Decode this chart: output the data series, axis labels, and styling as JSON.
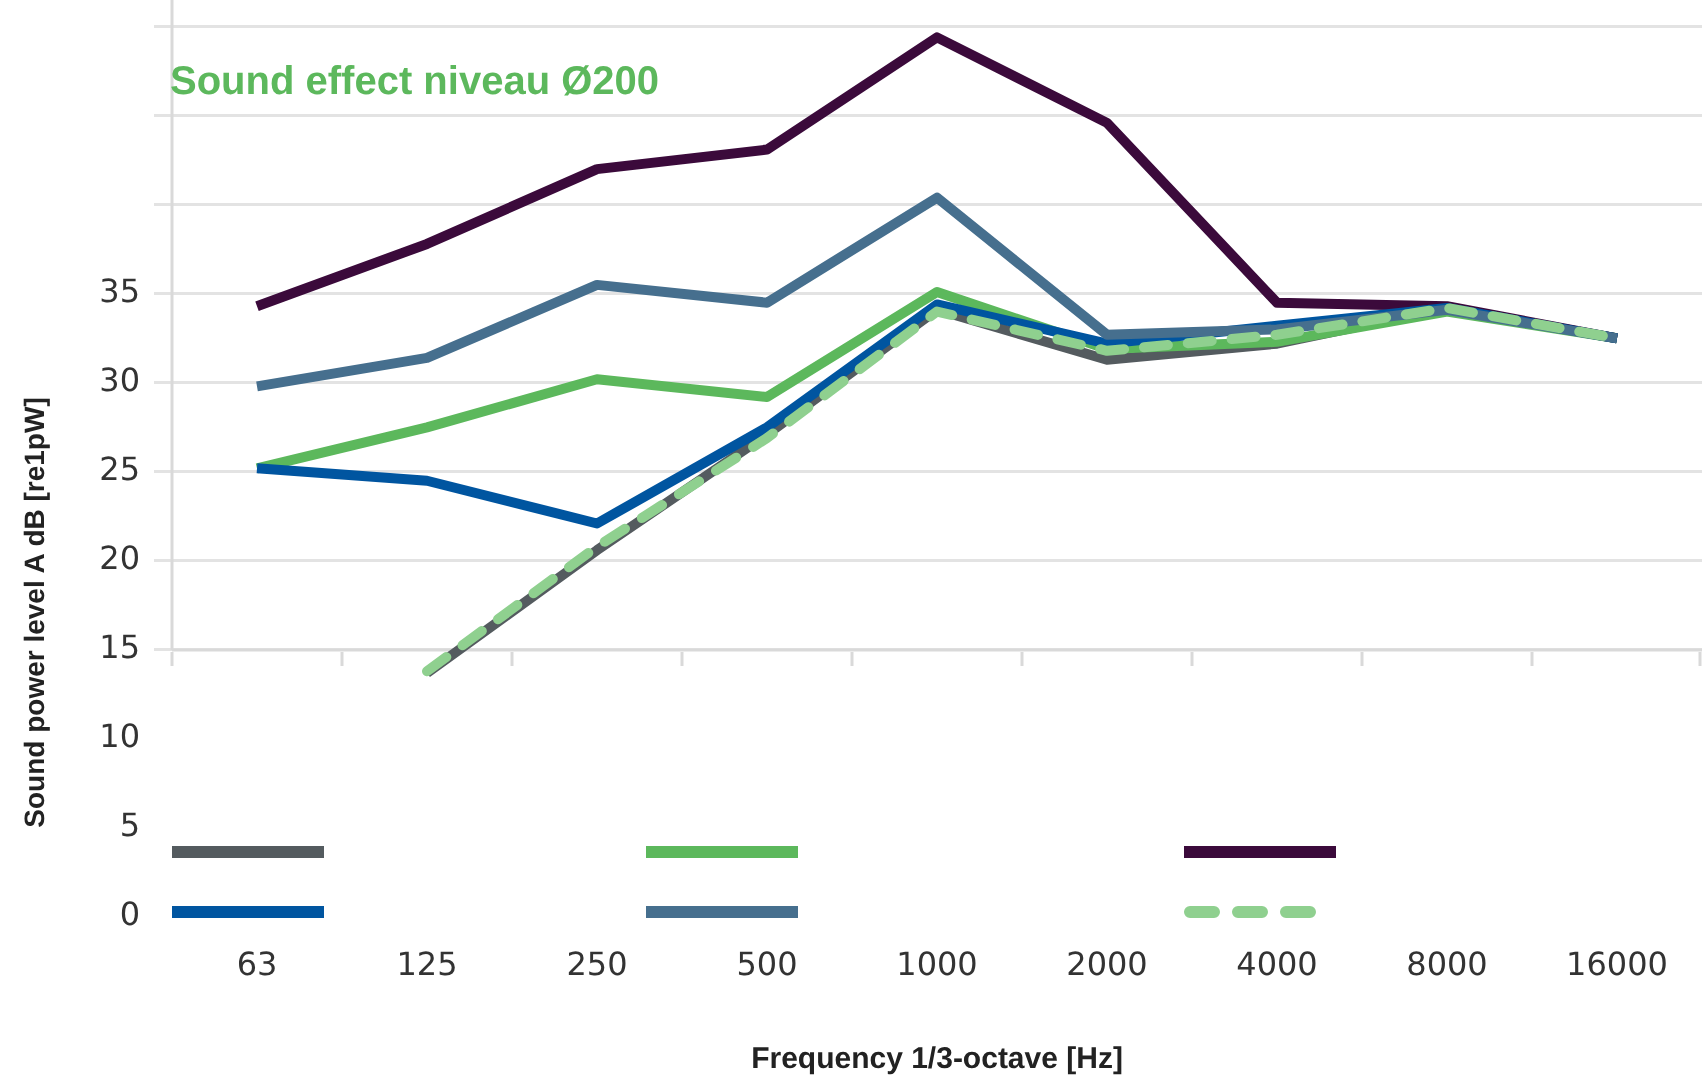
{
  "chart_data": {
    "type": "line",
    "title": "Sound effect niveau Ø200",
    "xlabel": "Frequency 1/3-octave [Hz]",
    "ylabel": "Sound power level A dB [re1pW]",
    "categories": [
      "63",
      "125",
      "250",
      "500",
      "1000",
      "2000",
      "4000",
      "8000",
      "16000"
    ],
    "series": [
      {
        "color": "#545b5f",
        "values": [
          null,
          13.7,
          20.6,
          27.1,
          34.1,
          31.3,
          32.2,
          34.2,
          32.5
        ]
      },
      {
        "color": "#5cb85c",
        "values": [
          25.2,
          27.5,
          30.2,
          29.2,
          35.1,
          31.9,
          32.3,
          34.0,
          32.5
        ]
      },
      {
        "color": "#3b0a3b",
        "values": [
          34.3,
          37.8,
          42.0,
          43.1,
          49.4,
          44.6,
          34.5,
          34.3,
          32.5
        ]
      },
      {
        "color": "#0055a0",
        "values": [
          25.2,
          24.5,
          22.1,
          27.5,
          34.4,
          32.2,
          33.2,
          34.2,
          32.5
        ]
      },
      {
        "color": "#466f8e",
        "values": [
          29.8,
          31.4,
          35.5,
          34.5,
          40.4,
          32.7,
          33.0,
          34.1,
          32.5
        ]
      },
      {
        "color": "#8fd08f",
        "line_style": "dashed",
        "values": [
          null,
          13.8,
          20.8,
          26.9,
          34.0,
          31.8,
          32.7,
          34.2,
          32.5
        ]
      }
    ],
    "ylim": [
      0,
      51.5
    ],
    "yticks": [
      0,
      5,
      10,
      15,
      20,
      25,
      30,
      35,
      {
        "value": 40,
        "label": null
      },
      {
        "value": 45,
        "label": null
      },
      {
        "value": 50,
        "label": null
      }
    ],
    "ref_lines": [
      {
        "axis": "y",
        "value": 15,
        "color": "#d9d9d9"
      }
    ],
    "grid": "y",
    "marker": "none"
  }
}
